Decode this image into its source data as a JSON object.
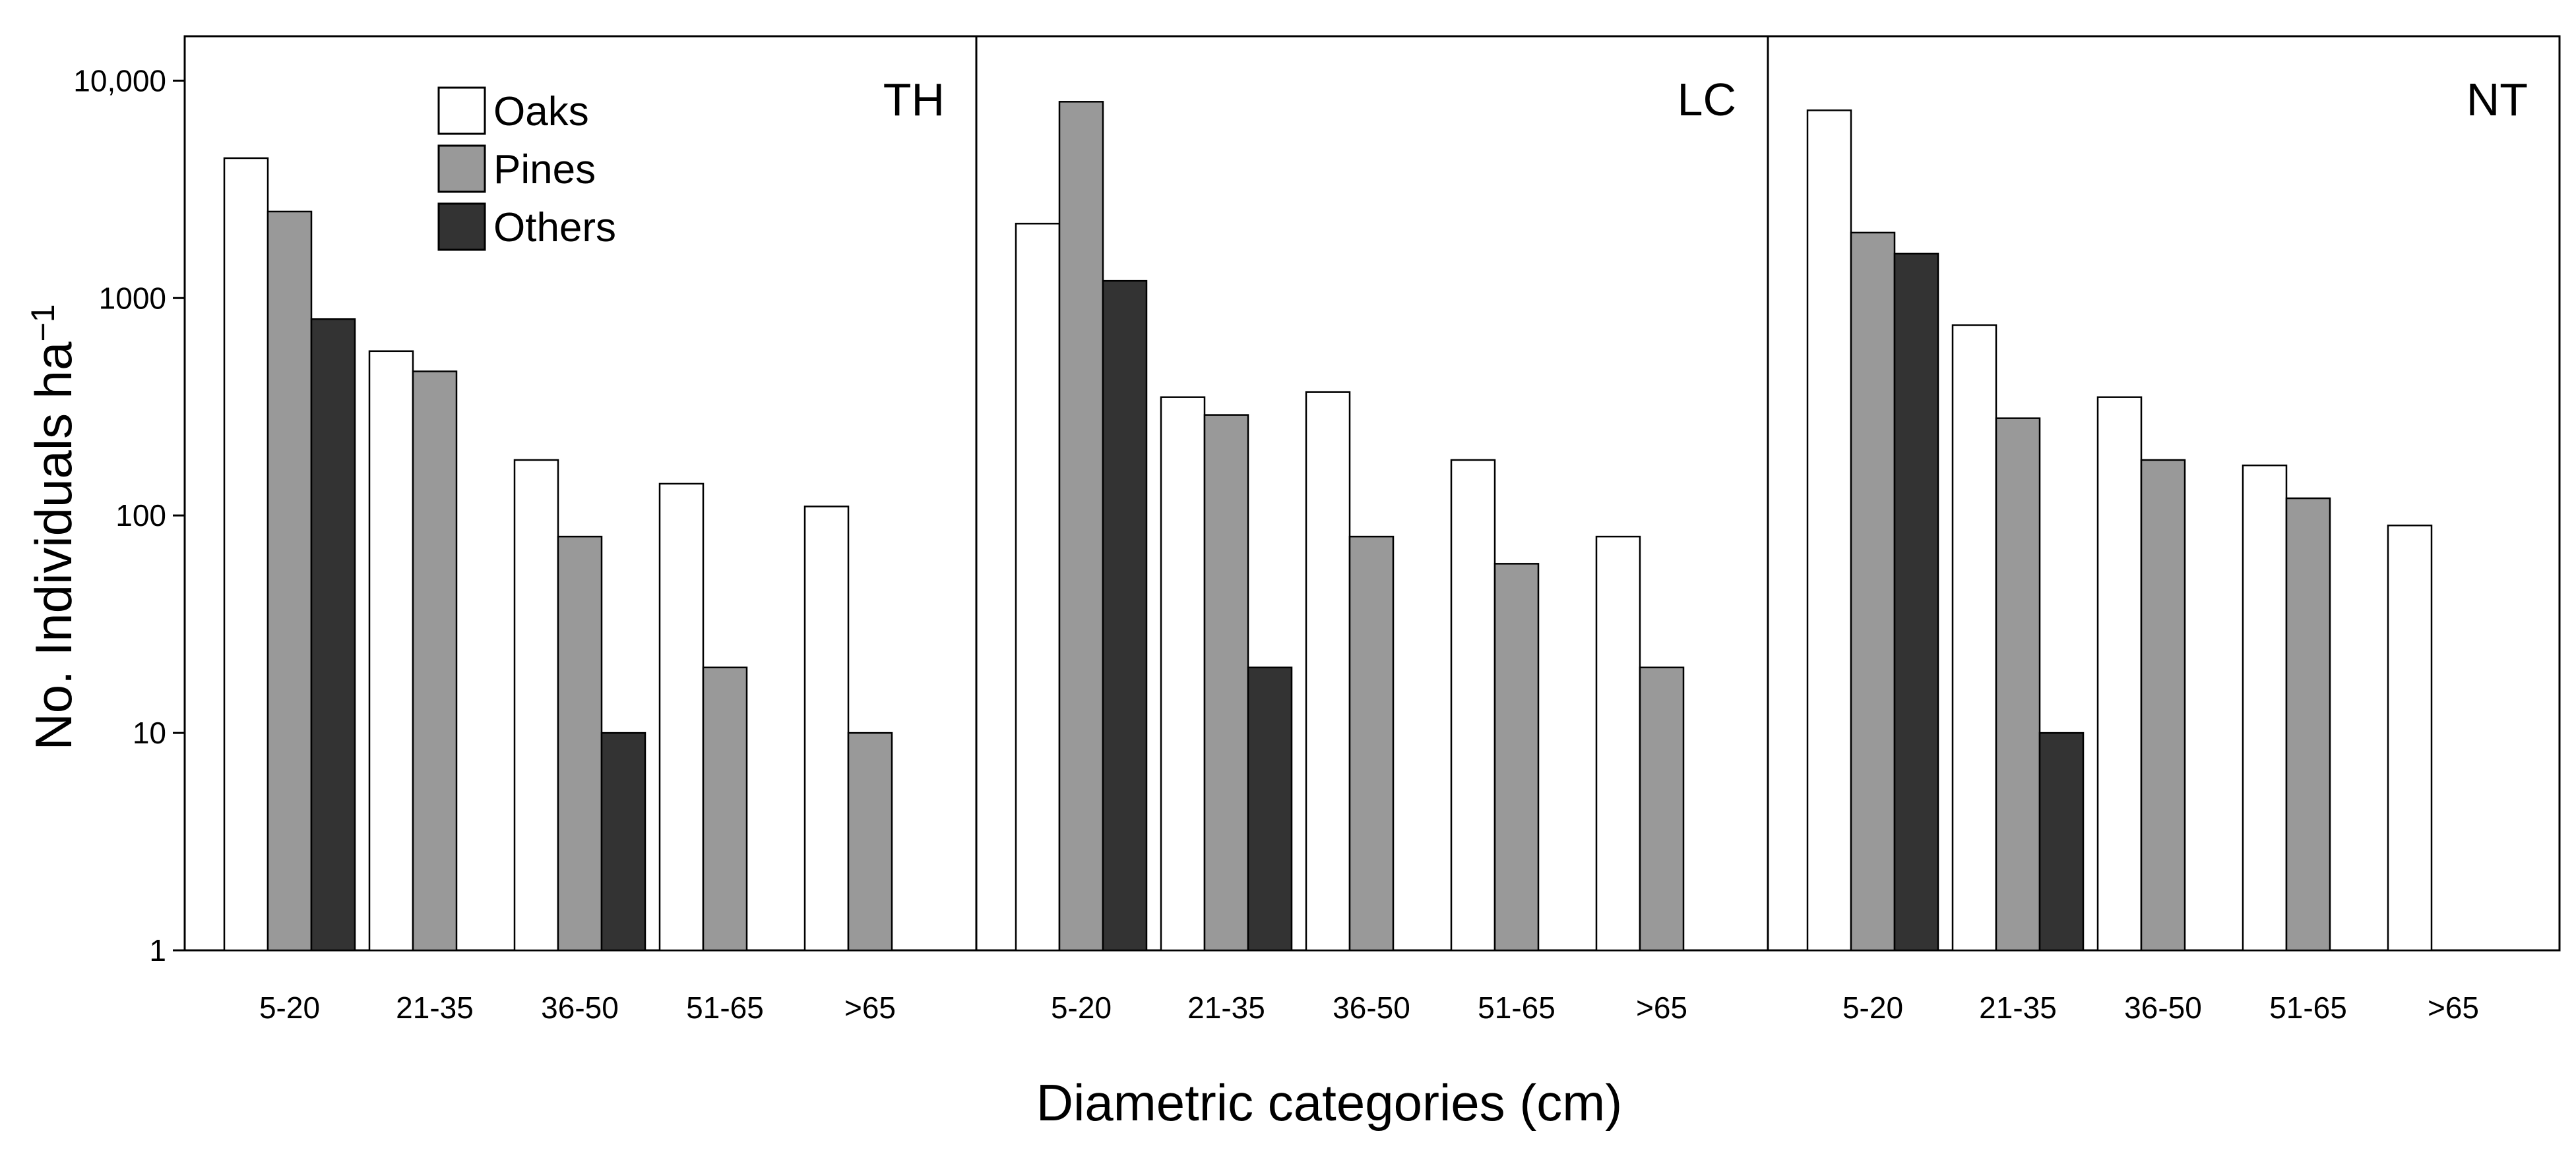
{
  "chart_data": {
    "type": "bar",
    "scale": "log",
    "xlabel": "Diametric categories (cm)",
    "ylabel": "No. Individuals ha",
    "ylabel_superscript": "−1",
    "ylim": [
      1,
      16000
    ],
    "yticks": [
      {
        "value": 1,
        "label": "1"
      },
      {
        "value": 10,
        "label": "10"
      },
      {
        "value": 100,
        "label": "100"
      },
      {
        "value": 1000,
        "label": "1000"
      },
      {
        "value": 10000,
        "label": "10,000"
      }
    ],
    "categories": [
      "5-20",
      "21-35",
      "36-50",
      "51-65",
      ">65"
    ],
    "legend": [
      {
        "name": "Oaks",
        "color": "#ffffff"
      },
      {
        "name": "Pines",
        "color": "#999999"
      },
      {
        "name": "Others",
        "color": "#333333"
      }
    ],
    "panels": [
      {
        "label": "TH",
        "series": [
          {
            "name": "Oaks",
            "values": [
              4400,
              570,
              180,
              140,
              110
            ]
          },
          {
            "name": "Pines",
            "values": [
              2500,
              460,
              80,
              20,
              10
            ]
          },
          {
            "name": "Others",
            "values": [
              800,
              1,
              10,
              1,
              1
            ]
          }
        ]
      },
      {
        "label": "LC",
        "series": [
          {
            "name": "Oaks",
            "values": [
              2200,
              350,
              370,
              180,
              80
            ]
          },
          {
            "name": "Pines",
            "values": [
              8000,
              290,
              80,
              60,
              20
            ]
          },
          {
            "name": "Others",
            "values": [
              1200,
              20,
              1,
              1,
              1
            ]
          }
        ]
      },
      {
        "label": "NT",
        "series": [
          {
            "name": "Oaks",
            "values": [
              7300,
              750,
              350,
              170,
              90
            ]
          },
          {
            "name": "Pines",
            "values": [
              2000,
              280,
              180,
              120,
              1
            ]
          },
          {
            "name": "Others",
            "values": [
              1600,
              10,
              1,
              1,
              1
            ]
          }
        ]
      }
    ]
  }
}
